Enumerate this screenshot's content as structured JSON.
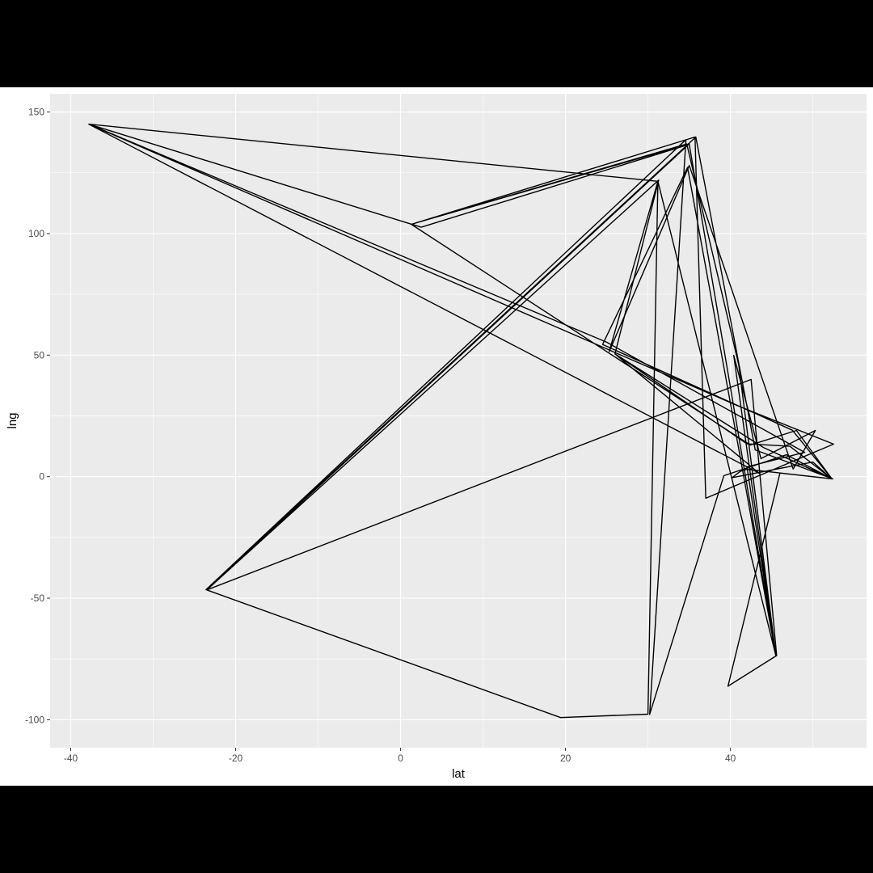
{
  "chart_data": {
    "type": "line",
    "title": "",
    "xlabel": "lat",
    "ylabel": "lng",
    "xlim": [
      -42.5,
      56.5
    ],
    "ylim": [
      -111.5,
      157.5
    ],
    "x_ticks": [
      -40,
      -20,
      0,
      20,
      40
    ],
    "y_ticks": [
      -100,
      -50,
      0,
      50,
      100,
      150
    ],
    "x_tick_labels": [
      "-40",
      "-20",
      "0",
      "20",
      "40"
    ],
    "y_tick_labels": [
      "-100",
      "-50",
      "0",
      "50",
      "100",
      "150"
    ],
    "grid": true,
    "legend": "none",
    "series": [
      {
        "points": [
          [
            -37.8,
            145.0
          ],
          [
            31.2,
            121.5
          ],
          [
            30.0,
            -97.7
          ],
          [
            19.4,
            -99.1
          ],
          [
            -23.5,
            -46.6
          ],
          [
            35.0,
            136.9
          ],
          [
            1.3,
            103.8
          ],
          [
            35.7,
            139.7
          ],
          [
            37.0,
            -8.9
          ],
          [
            52.5,
            13.4
          ],
          [
            41.0,
            29.0
          ],
          [
            -37.8,
            145.0
          ],
          [
            2.5,
            102.6
          ],
          [
            35.0,
            136.7
          ],
          [
            45.5,
            -73.6
          ],
          [
            40.4,
            49.9
          ],
          [
            43.7,
            7.4
          ],
          [
            50.3,
            19.0
          ],
          [
            47.6,
            3.1
          ],
          [
            35.0,
            128.0
          ],
          [
            25.3,
            51.5
          ],
          [
            31.2,
            121.5
          ],
          [
            45.5,
            -73.6
          ],
          [
            41.5,
            2.1
          ],
          [
            34.8,
            127.2
          ],
          [
            24.5,
            54.4
          ],
          [
            47.5,
            19.1
          ],
          [
            52.3,
            -0.9
          ],
          [
            46.0,
            1.5
          ],
          [
            39.7,
            -86.2
          ],
          [
            45.6,
            -73.6
          ],
          [
            42.5,
            40.0
          ],
          [
            -23.5,
            -46.6
          ],
          [
            31.3,
            122.0
          ],
          [
            26.0,
            50.5
          ],
          [
            44.0,
            12.0
          ],
          [
            52.3,
            -0.9
          ],
          [
            47.2,
            12.5
          ],
          [
            42.0,
            13.5
          ],
          [
            26.0,
            50.5
          ],
          [
            43.5,
            1.4
          ],
          [
            -37.8,
            145.0
          ],
          [
            25.0,
            55.3
          ],
          [
            49.0,
            10.0
          ],
          [
            42.0,
            4.0
          ],
          [
            45.5,
            -73.6
          ],
          [
            41.0,
            46.0
          ],
          [
            34.7,
            136.9
          ],
          [
            1.3,
            103.8
          ],
          [
            42.4,
            13.0
          ],
          [
            48.0,
            19.0
          ],
          [
            52.3,
            -0.9
          ],
          [
            46.8,
            9.0
          ],
          [
            39.2,
            0.4
          ],
          [
            30.2,
            -97.8
          ],
          [
            34.6,
            138.6
          ],
          [
            -23.6,
            -46.5
          ],
          [
            35.8,
            139.7
          ],
          [
            43.0,
            11.0
          ],
          [
            52.4,
            -0.9
          ],
          [
            42.0,
            3.0
          ],
          [
            41.2,
            2.2
          ],
          [
            40.2,
            -0.4
          ],
          [
            50.0,
            6.0
          ],
          [
            52.2,
            -0.6
          ]
        ]
      }
    ]
  }
}
